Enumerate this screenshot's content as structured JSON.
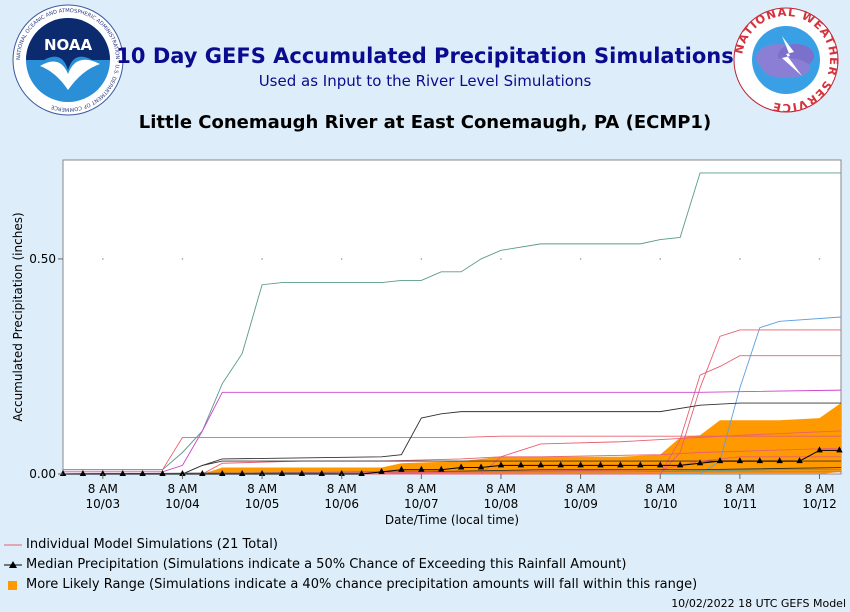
{
  "header": {
    "title": "10 Day GEFS Accumulated Precipitation Simulations",
    "subtitle": "Used as Input to the River Level Simulations",
    "station": "Little Conemaugh River at East Conemaugh, PA (ECMP1)",
    "noaa_logo_text": "NOAA",
    "noaa_ring_text": "NATIONAL OCEANIC AND ATMOSPHERIC ADMINISTRATION · U.S. DEPARTMENT OF COMMERCE",
    "nws_ring_text": "NATIONAL WEATHER SERVICE"
  },
  "legend": {
    "individual": "Individual Model Simulations (21 Total)",
    "median": "Median Precipitation (Simulations indicate a 50% Chance of Exceeding this Rainfall Amount)",
    "range": "More Likely Range (Simulations indicate a 40% chance precipitation amounts will fall within this range)"
  },
  "footer": "10/02/2022 18 UTC GEFS Model",
  "colors": {
    "title": "#0b0b8f",
    "range": "#ff9900",
    "median": "#000000",
    "background": "#ddeefa"
  },
  "chart_data": {
    "type": "line",
    "xlabel": "Date/Time (local time)",
    "ylabel": "Accumulated Precipitation (inches)",
    "ylim": [
      0,
      0.73
    ],
    "xlim": [
      0,
      9.77
    ],
    "yticks": [
      0,
      0.5
    ],
    "ytick_labels": [
      "0.00",
      "0.50"
    ],
    "xticks": [
      0.5,
      1.5,
      2.5,
      3.5,
      4.5,
      5.5,
      6.5,
      7.5,
      8.5,
      9.5
    ],
    "xtick_labels": [
      [
        "8 AM",
        "10/03"
      ],
      [
        "8 AM",
        "10/04"
      ],
      [
        "8 AM",
        "10/05"
      ],
      [
        "8 AM",
        "10/06"
      ],
      [
        "8 AM",
        "10/07"
      ],
      [
        "8 AM",
        "10/08"
      ],
      [
        "8 AM",
        "10/09"
      ],
      [
        "8 AM",
        "10/10"
      ],
      [
        "8 AM",
        "10/11"
      ],
      [
        "8 AM",
        "10/12"
      ]
    ],
    "x_units": "days after 10/02 8 AM local",
    "grid": "dotted",
    "series": [
      {
        "color": "#5a9a8a",
        "x": [
          0,
          1.25,
          1.5,
          1.75,
          2.0,
          2.25,
          2.5,
          2.75,
          4.0,
          4.25,
          4.5,
          4.75,
          5.0,
          5.25,
          5.5,
          6.0,
          7.0,
          7.25,
          7.5,
          7.75,
          8.0,
          9.77
        ],
        "y": [
          0.01,
          0.01,
          0.05,
          0.1,
          0.21,
          0.28,
          0.44,
          0.445,
          0.445,
          0.45,
          0.45,
          0.47,
          0.47,
          0.5,
          0.52,
          0.535,
          0.535,
          0.535,
          0.545,
          0.55,
          0.7,
          0.7
        ]
      },
      {
        "color": "#5aa0e0",
        "x": [
          0,
          8.0,
          8.25,
          8.5,
          8.75,
          9.0,
          9.77
        ],
        "y": [
          0,
          0,
          0.03,
          0.2,
          0.34,
          0.355,
          0.365
        ]
      },
      {
        "color": "#e86070",
        "x": [
          0,
          7.5,
          7.75,
          8.0,
          8.25,
          8.5,
          9.77
        ],
        "y": [
          0,
          0,
          0.05,
          0.2,
          0.32,
          0.335,
          0.335
        ]
      },
      {
        "color": "#e86070",
        "x": [
          0,
          7.5,
          7.75,
          8.0,
          8.25,
          8.5,
          9.77
        ],
        "y": [
          0,
          0,
          0.08,
          0.23,
          0.25,
          0.275,
          0.275
        ]
      },
      {
        "color": "#cc44cc",
        "x": [
          0,
          1.25,
          1.5,
          1.75,
          2.0,
          8.0,
          9.77
        ],
        "y": [
          0.005,
          0.005,
          0.02,
          0.1,
          0.19,
          0.19,
          0.195
        ]
      },
      {
        "color": "#e86070",
        "x": [
          0,
          1.25,
          1.5,
          2.0,
          4.0,
          5.0,
          5.5,
          9.77
        ],
        "y": [
          0.01,
          0.01,
          0.085,
          0.085,
          0.085,
          0.085,
          0.088,
          0.088
        ]
      },
      {
        "color": "#333333",
        "x": [
          0,
          1.5,
          1.75,
          2.0,
          4.0,
          4.25,
          4.5,
          4.75,
          5.0,
          7.5,
          8.0,
          8.5,
          9.77
        ],
        "y": [
          0,
          0,
          0.02,
          0.035,
          0.04,
          0.045,
          0.13,
          0.14,
          0.145,
          0.145,
          0.16,
          0.165,
          0.165
        ]
      },
      {
        "color": "#e86070",
        "x": [
          0,
          5.25,
          5.5,
          6.0,
          7.0,
          7.5,
          8.0,
          8.5,
          9.77
        ],
        "y": [
          0,
          0,
          0.04,
          0.07,
          0.075,
          0.08,
          0.085,
          0.09,
          0.1
        ]
      },
      {
        "color": "#e86070",
        "x": [
          0,
          1.75,
          2.0,
          3.0,
          4.0,
          5.0,
          5.5,
          6.0,
          7.5,
          8.0,
          9.77
        ],
        "y": [
          0,
          0,
          0.025,
          0.03,
          0.03,
          0.035,
          0.04,
          0.04,
          0.045,
          0.05,
          0.06
        ]
      },
      {
        "color": "#333333",
        "x": [
          0,
          1.5,
          1.75,
          2.0,
          4.0,
          6.0,
          8.0,
          9.77
        ],
        "y": [
          0,
          0,
          0.02,
          0.03,
          0.03,
          0.03,
          0.03,
          0.03
        ]
      },
      {
        "color": "#e86070",
        "x": [
          0,
          4.0,
          5.0,
          7.5,
          8.0,
          8.5,
          9.77
        ],
        "y": [
          0,
          0,
          0.005,
          0.01,
          0.03,
          0.04,
          0.04
        ]
      },
      {
        "color": "#333333",
        "x": [
          0,
          4.5,
          6.0,
          8.0,
          9.77
        ],
        "y": [
          0,
          0.005,
          0.01,
          0.01,
          0.015
        ]
      },
      {
        "color": "#5a9a8a",
        "x": [
          0,
          5.0,
          7.0,
          9.0,
          9.77
        ],
        "y": [
          0,
          0.005,
          0.005,
          0.01,
          0.01
        ]
      },
      {
        "color": "#e86070",
        "x": [
          0,
          6.0,
          9.77
        ],
        "y": [
          0,
          0.005,
          0.005
        ]
      }
    ],
    "range": {
      "color": "#ff9900",
      "x": [
        0,
        1.75,
        2.0,
        4.0,
        4.25,
        5.0,
        5.5,
        7.0,
        7.5,
        7.75,
        8.0,
        8.25,
        9.0,
        9.5,
        9.77
      ],
      "lower": [
        0,
        0,
        0,
        0,
        0,
        0,
        0,
        0,
        0,
        0,
        0,
        0,
        0,
        0,
        0.005
      ],
      "upper": [
        0,
        0,
        0.015,
        0.015,
        0.025,
        0.03,
        0.04,
        0.04,
        0.045,
        0.085,
        0.09,
        0.125,
        0.125,
        0.13,
        0.165
      ]
    },
    "median": {
      "name": "Median Precipitation",
      "x": [
        0,
        0.25,
        0.5,
        0.75,
        1.0,
        1.25,
        1.5,
        1.75,
        2.0,
        2.25,
        2.5,
        2.75,
        3.0,
        3.25,
        3.5,
        3.75,
        4.0,
        4.25,
        4.5,
        4.75,
        5.0,
        5.25,
        5.5,
        5.75,
        6.0,
        6.25,
        6.5,
        6.75,
        7.0,
        7.25,
        7.5,
        7.75,
        8.0,
        8.25,
        8.5,
        8.75,
        9.0,
        9.25,
        9.5,
        9.75
      ],
      "y": [
        0.0,
        0.0,
        0.0,
        0.0,
        0.0,
        0.0,
        0.0,
        0.0,
        0.0,
        0.0,
        0.0,
        0.0,
        0.0,
        0.0,
        0.0,
        0.0,
        0.005,
        0.01,
        0.01,
        0.01,
        0.015,
        0.015,
        0.02,
        0.02,
        0.02,
        0.02,
        0.02,
        0.02,
        0.02,
        0.02,
        0.02,
        0.02,
        0.025,
        0.03,
        0.03,
        0.03,
        0.03,
        0.03,
        0.055,
        0.055
      ]
    }
  }
}
